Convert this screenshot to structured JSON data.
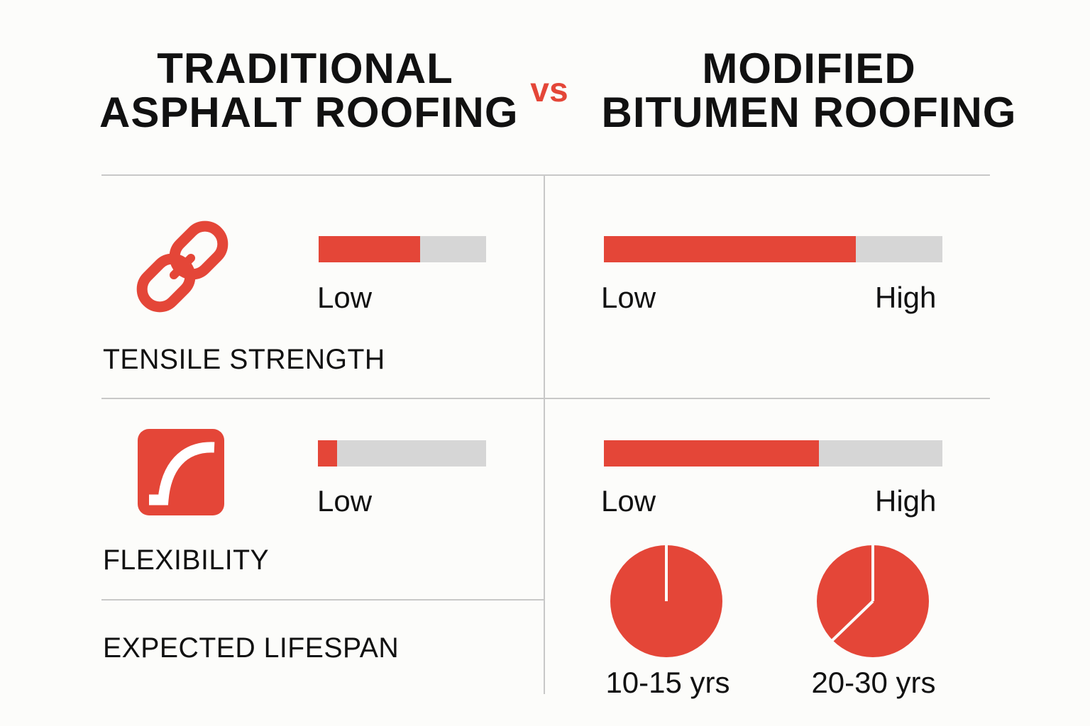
{
  "header": {
    "left_title_line1": "TRADITIONAL",
    "left_title_line2": "ASPHALT ROOFING",
    "vs": "vs",
    "right_title_line1": "MODIFIED",
    "right_title_line2": "BITUMEN ROOFING"
  },
  "colors": {
    "accent": "#e44638",
    "bar_track": "#d6d6d6",
    "divider": "#c8c8c8",
    "background": "#fcfcfa",
    "text": "#111111"
  },
  "rows": {
    "tensile": {
      "label": "TENSILE STRENGTH",
      "icon": "chain-link-icon",
      "traditional": {
        "fill_pct": 60.6,
        "low_label": "Low"
      },
      "modified": {
        "fill_pct": 74.4,
        "low_label": "Low",
        "high_label": "High"
      }
    },
    "flexibility": {
      "label": "FLEXIBILITY",
      "icon": "flex-curve-icon",
      "traditional": {
        "fill_pct": 11.4,
        "low_label": "Low"
      },
      "modified": {
        "fill_pct": 63.5,
        "low_label": "Low",
        "high_label": "High"
      }
    },
    "lifespan": {
      "label": "EXPECTED LIFESPAN",
      "pies": [
        {
          "label": "10-15 yrs",
          "divider_angle_deg": 0
        },
        {
          "label": "20-30 yrs",
          "divider_angle_deg": 226
        }
      ]
    }
  },
  "chart_data": {
    "type": "bar",
    "title": "Traditional Asphalt Roofing vs Modified Bitumen Roofing",
    "categories": [
      "Tensile Strength",
      "Flexibility"
    ],
    "series": [
      {
        "name": "Traditional Asphalt Roofing",
        "values": [
          60.6,
          11.4
        ]
      },
      {
        "name": "Modified Bitumen Roofing",
        "values": [
          74.4,
          63.5
        ]
      }
    ],
    "scale_labels": [
      "Low",
      "High"
    ],
    "ylim": [
      0,
      100
    ],
    "lifespan": {
      "type": "pie",
      "items": [
        {
          "label": "10-15 yrs",
          "slices": [
            100
          ]
        },
        {
          "label": "20-30 yrs",
          "slices": [
            62.8,
            37.2
          ]
        }
      ]
    },
    "xlabel": "",
    "ylabel": "",
    "legend": "none"
  }
}
